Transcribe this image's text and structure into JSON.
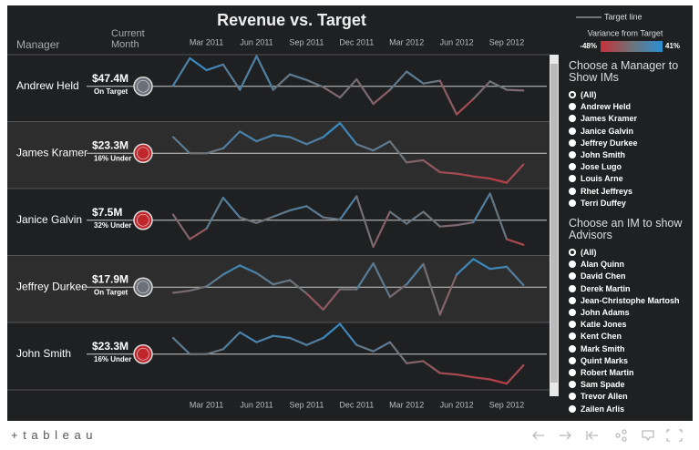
{
  "title": "Revenue vs. Target",
  "headers": {
    "manager": "Manager",
    "current_month": "Current Month"
  },
  "legend": {
    "target_label": "Target line",
    "title": "Variance from Target",
    "min": -48,
    "max": 41,
    "min_label": "-48%",
    "max_label": "41%",
    "colors": [
      "#c8303a",
      "#6f7378",
      "#2a8fd4"
    ]
  },
  "filters": [
    {
      "title": "Choose a Manager to Show IMs",
      "options": [
        "(All)",
        "Andrew Held",
        "James Kramer",
        "Janice Galvin",
        "Jeffrey Durkee",
        "John Smith",
        "Jose Lugo",
        "Louis Arne",
        "Rhet Jeffreys",
        "Terri Duffey"
      ],
      "selected": 0
    },
    {
      "title": "Choose an IM to show Advisors",
      "options": [
        "(All)",
        "Alan Quinn",
        "David Chen",
        "Derek Martin",
        "Jean-Christophe Martosh",
        "John Adams",
        "Katie Jones",
        "Kent Chen",
        "Mark Smith",
        "Quint Marks",
        "Robert Martin",
        "Sam Spade",
        "Trevor Allen",
        "Zailen Arlis"
      ],
      "selected": 0
    }
  ],
  "footer": {
    "logo": "+ t a b l e a u"
  },
  "chart_data": [
    {
      "type": "line",
      "name": "Andrew Held",
      "revenue": "$47.4M",
      "status": "On Target",
      "status_color": "#6b7078",
      "target": 0,
      "ylim": [
        -48,
        48
      ],
      "categories": [
        null,
        null,
        "Mar 2011",
        null,
        null,
        "Jun 2011",
        null,
        null,
        "Sep 2011",
        null,
        null,
        "Dec 2011",
        null,
        null,
        "Mar 2012",
        null,
        null,
        "Jun 2012",
        null,
        null,
        "Sep 2012",
        null
      ],
      "values": [
        1,
        40,
        23,
        31,
        -5,
        43,
        -5,
        17,
        9,
        -1,
        -16,
        10,
        -25,
        -5,
        21,
        4,
        8,
        -40,
        -18,
        7,
        -5,
        -6
      ]
    },
    {
      "type": "line",
      "name": "James Kramer",
      "revenue": "$23.3M",
      "status": "16% Under",
      "status_color": "#c0272d",
      "target": 0,
      "ylim": [
        -48,
        48
      ],
      "categories": [
        null,
        null,
        "Mar 2011",
        null,
        null,
        "Jun 2011",
        null,
        null,
        "Sep 2011",
        null,
        null,
        "Dec 2011",
        null,
        null,
        "Mar 2012",
        null,
        null,
        "Jun 2012",
        null,
        null,
        "Sep 2012",
        null
      ],
      "values": [
        23,
        0,
        0,
        7,
        31,
        17,
        26,
        23,
        13,
        23,
        43,
        13,
        4,
        17,
        -13,
        -10,
        -27,
        -29,
        -33,
        -36,
        -42,
        -16
      ]
    },
    {
      "type": "line",
      "name": "Janice Galvin",
      "revenue": "$7.5M",
      "status": "32% Under",
      "status_color": "#c0272d",
      "target": 0,
      "ylim": [
        -48,
        48
      ],
      "categories": [
        null,
        null,
        "Mar 2011",
        null,
        null,
        "Jun 2011",
        null,
        null,
        "Sep 2011",
        null,
        null,
        "Dec 2011",
        null,
        null,
        "Mar 2012",
        null,
        null,
        "Jun 2012",
        null,
        null,
        "Sep 2012",
        null
      ],
      "values": [
        8,
        -27,
        -12,
        32,
        4,
        -4,
        5,
        14,
        20,
        4,
        1,
        34,
        -38,
        12,
        -5,
        12,
        -9,
        -7,
        -3,
        38,
        -27,
        -35
      ]
    },
    {
      "type": "line",
      "name": "Jeffrey Durkee",
      "revenue": "$17.9M",
      "status": "On Target",
      "status_color": "#6b7078",
      "target": 0,
      "ylim": [
        -48,
        48
      ],
      "categories": [
        null,
        null,
        "Mar 2011",
        null,
        null,
        "Jun 2011",
        null,
        null,
        "Sep 2011",
        null,
        null,
        "Dec 2011",
        null,
        null,
        "Mar 2012",
        null,
        null,
        "Jun 2012",
        null,
        null,
        "Sep 2012",
        null
      ],
      "values": [
        -8,
        -5,
        1,
        18,
        31,
        20,
        4,
        10,
        -9,
        -32,
        -3,
        -3,
        34,
        -14,
        4,
        33,
        -39,
        18,
        40,
        26,
        29,
        3
      ]
    },
    {
      "type": "line",
      "name": "John Smith",
      "revenue": "$23.3M",
      "status": "16% Under",
      "status_color": "#c0272d",
      "target": 0,
      "ylim": [
        -48,
        48
      ],
      "categories": [
        null,
        null,
        "Mar 2011",
        null,
        null,
        "Jun 2011",
        null,
        null,
        "Sep 2011",
        null,
        null,
        "Dec 2011",
        null,
        null,
        "Mar 2012",
        null,
        null,
        "Jun 2012",
        null,
        null,
        "Sep 2012",
        null
      ],
      "values": [
        23,
        0,
        0,
        7,
        31,
        17,
        26,
        23,
        13,
        23,
        43,
        13,
        4,
        17,
        -13,
        -10,
        -27,
        -29,
        -33,
        -36,
        -42,
        -16
      ]
    }
  ]
}
